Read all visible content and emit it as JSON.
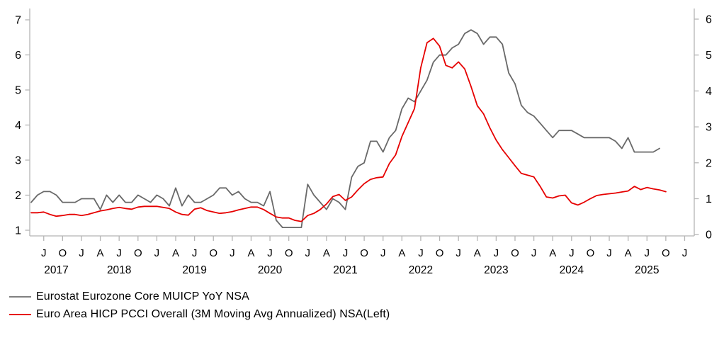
{
  "chart": {
    "left_axis_tick_labels": [
      "1",
      "2",
      "3",
      "4",
      "5",
      "6",
      "7"
    ],
    "right_axis_tick_labels": [
      "0",
      "1",
      "2",
      "3",
      "4",
      "5",
      "6"
    ],
    "x_month_tick_letters": [
      "J",
      "O",
      "J",
      "A",
      "J",
      "O",
      "J",
      "A",
      "J",
      "O",
      "J",
      "A",
      "J",
      "O",
      "J",
      "A",
      "J",
      "O",
      "J",
      "A",
      "J",
      "O",
      "J",
      "A",
      "J",
      "O",
      "J",
      "A",
      "J",
      "O",
      "J",
      "A",
      "J",
      "O",
      "J"
    ],
    "x_year_labels": [
      "2017",
      "2018",
      "2019",
      "2020",
      "2021",
      "2022",
      "2023",
      "2024",
      "2025"
    ],
    "axis_color": "#b5b5b5",
    "text_color": "#000000"
  },
  "legend": [
    {
      "label": "Eurostat Eurozone Core MUICP YoY NSA",
      "color": "#808080"
    },
    {
      "label": "Euro Area HICP PCCI Overall (3M Moving Avg Annualized) NSA(Left)",
      "color": "#e60000"
    }
  ],
  "chart_data": {
    "type": "line",
    "frequency": "monthly",
    "x_start_month": "2017-05",
    "x_tick_months": "quarterly (Jan, Apr, Jul, Oct) labeled J A J O, from Jul 2017 to Jan 2026",
    "left_ylim": [
      1,
      7
    ],
    "right_ylim": [
      0,
      6
    ],
    "grid": false,
    "legend_position": "bottom-left",
    "series": [
      {
        "name": "Eurostat Eurozone Core MUICP YoY NSA",
        "axis": "right",
        "color": "#696969",
        "start_month": "2017-05",
        "end_month": "2025-09",
        "values": [
          0.9,
          1.1,
          1.2,
          1.2,
          1.1,
          0.9,
          0.9,
          0.9,
          1.0,
          1.0,
          1.0,
          0.7,
          1.1,
          0.9,
          1.1,
          0.9,
          0.9,
          1.1,
          1.0,
          0.9,
          1.1,
          1.0,
          0.8,
          1.3,
          0.8,
          1.1,
          0.9,
          0.9,
          1.0,
          1.1,
          1.3,
          1.3,
          1.1,
          1.2,
          1.0,
          0.9,
          0.9,
          0.8,
          1.2,
          0.4,
          0.2,
          0.2,
          0.2,
          0.2,
          1.4,
          1.1,
          0.9,
          0.7,
          1.0,
          0.9,
          0.7,
          1.6,
          1.9,
          2.0,
          2.6,
          2.6,
          2.3,
          2.7,
          2.9,
          3.5,
          3.8,
          3.7,
          4.0,
          4.3,
          4.8,
          5.0,
          5.0,
          5.2,
          5.3,
          5.6,
          5.7,
          5.6,
          5.3,
          5.5,
          5.5,
          5.3,
          4.5,
          4.2,
          3.6,
          3.4,
          3.3,
          3.1,
          2.9,
          2.7,
          2.9,
          2.9,
          2.9,
          2.8,
          2.7,
          2.7,
          2.7,
          2.7,
          2.7,
          2.6,
          2.4,
          2.7,
          2.3,
          2.3,
          2.3,
          2.3,
          2.4
        ]
      },
      {
        "name": "Euro Area HICP PCCI Overall (3M Moving Avg Annualized) NSA(Left)",
        "axis": "left",
        "color": "#e60000",
        "start_month": "2017-05",
        "end_month": "2025-10",
        "values": [
          1.5,
          1.5,
          1.52,
          1.45,
          1.4,
          1.42,
          1.45,
          1.45,
          1.42,
          1.45,
          1.5,
          1.55,
          1.58,
          1.62,
          1.65,
          1.62,
          1.6,
          1.66,
          1.68,
          1.68,
          1.68,
          1.65,
          1.62,
          1.52,
          1.45,
          1.43,
          1.6,
          1.64,
          1.56,
          1.52,
          1.48,
          1.5,
          1.53,
          1.58,
          1.62,
          1.66,
          1.66,
          1.59,
          1.48,
          1.38,
          1.35,
          1.35,
          1.28,
          1.25,
          1.42,
          1.48,
          1.59,
          1.75,
          1.96,
          2.02,
          1.85,
          1.95,
          2.15,
          2.33,
          2.45,
          2.5,
          2.52,
          2.9,
          3.15,
          3.67,
          4.07,
          4.47,
          5.63,
          6.35,
          6.47,
          6.25,
          5.7,
          5.63,
          5.8,
          5.6,
          5.1,
          4.55,
          4.32,
          3.92,
          3.57,
          3.3,
          3.07,
          2.84,
          2.62,
          2.57,
          2.52,
          2.25,
          1.95,
          1.92,
          1.98,
          2.0,
          1.78,
          1.72,
          1.8,
          1.9,
          1.99,
          2.02,
          2.04,
          2.06,
          2.09,
          2.12,
          2.25,
          2.16,
          2.22,
          2.18,
          2.15,
          2.1
        ]
      }
    ]
  }
}
